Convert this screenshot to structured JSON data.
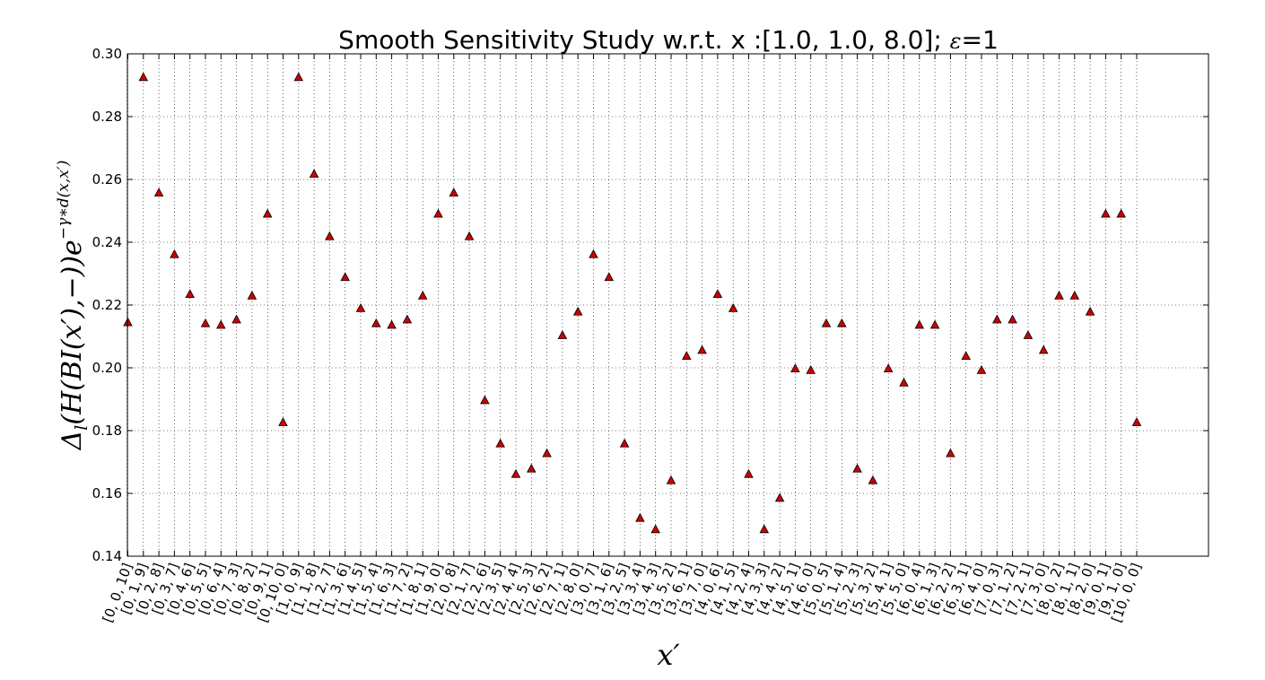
{
  "chart_data": {
    "type": "scatter",
    "title": {
      "prefix": "Smooth Sensitivity Study w.r.t. x :[1.0, 1.0, 8.0]; ",
      "epsilon_symbol": "ε",
      "suffix": "=1"
    },
    "xlabel": "x′",
    "ylabel": "Δl(H(BI(x′),−))e^{−γ∗d(x,x′)}",
    "ylim": [
      0.14,
      0.3
    ],
    "yticks": [
      "0.14",
      "0.16",
      "0.18",
      "0.20",
      "0.22",
      "0.24",
      "0.26",
      "0.28",
      "0.30"
    ],
    "grid": true,
    "marker": "triangle",
    "marker_color": "#cc0000",
    "x": [
      "[0, 0, 10]",
      "[0, 1, 9]",
      "[0, 2, 8]",
      "[0, 3, 7]",
      "[0, 4, 6]",
      "[0, 5, 5]",
      "[0, 6, 4]",
      "[0, 7, 3]",
      "[0, 8, 2]",
      "[0, 9, 1]",
      "[0, 10, 0]",
      "[1, 0, 9]",
      "[1, 1, 8]",
      "[1, 2, 7]",
      "[1, 3, 6]",
      "[1, 4, 5]",
      "[1, 5, 4]",
      "[1, 6, 3]",
      "[1, 7, 2]",
      "[1, 8, 1]",
      "[1, 9, 0]",
      "[2, 0, 8]",
      "[2, 1, 7]",
      "[2, 2, 6]",
      "[2, 3, 5]",
      "[2, 4, 4]",
      "[2, 5, 3]",
      "[2, 6, 2]",
      "[2, 7, 1]",
      "[2, 8, 0]",
      "[3, 0, 7]",
      "[3, 1, 6]",
      "[3, 2, 5]",
      "[3, 3, 4]",
      "[3, 4, 3]",
      "[3, 5, 2]",
      "[3, 6, 1]",
      "[3, 7, 0]",
      "[4, 0, 6]",
      "[4, 1, 5]",
      "[4, 2, 4]",
      "[4, 3, 3]",
      "[4, 4, 2]",
      "[4, 5, 1]",
      "[4, 6, 0]",
      "[5, 0, 5]",
      "[5, 1, 4]",
      "[5, 2, 3]",
      "[5, 3, 2]",
      "[5, 4, 1]",
      "[5, 5, 0]",
      "[6, 0, 4]",
      "[6, 1, 3]",
      "[6, 2, 2]",
      "[6, 3, 1]",
      "[6, 4, 0]",
      "[7, 0, 3]",
      "[7, 1, 2]",
      "[7, 2, 1]",
      "[7, 3, 0]",
      "[8, 0, 2]",
      "[8, 1, 1]",
      "[8, 2, 0]",
      "[9, 0, 1]",
      "[9, 1, 0]",
      "[10, 0, 0]"
    ],
    "tick_labels_shown": [
      "[0, 0, 10]",
      "[0, 1, 9]",
      "[0, 2, 8]",
      "[0, 3, 7]",
      "[0, 4, 6]",
      "[0, 5, 5]",
      "[0, 6, 4]",
      "[0, 7, 3]",
      "[0, 8, 2]",
      "[0, 9, 1]",
      "[0, 10, 0]",
      "[1, 0, 9]",
      "[1, 1, 8]",
      "[1, 2, 7]",
      "[1, 3, 6]",
      "[1, 4, 5]",
      "[1, 5, 4]",
      "[1, 6, 3]",
      "[1, 7, 2]",
      "[1, 8, 1]",
      "[1, 9, 0]",
      "[2, 0, 8]",
      "[2, 1, 7]",
      "[2, 2, 6]",
      "[2, 3, 5]",
      "[2, 4, 4]",
      "[2, 5, 3]",
      "[2, 6, 2]",
      "[2, 7, 1]",
      "[2, 8, 0]",
      "[3, 0, 7]",
      "[3, 1, 6]",
      "[3, 2, 5]",
      "[3, 3, 4]",
      "[3, 4, 3]",
      "[3, 5, 2]",
      "[3, 6, 1]",
      "[3, 7, 0]",
      "[4, 0, 6]",
      "[4, 1, 5]",
      "[4, 2, 4]",
      "[4, 3, 3]",
      "[4, 4, 2]",
      "[4, 5, 1]",
      "[4, 6, 0]",
      "[5, 0, 5]",
      "[5, 1, 4]",
      "[5, 2, 3]",
      "[5, 3, 2]",
      "[5, 4, 1]",
      "[5, 5, 0]",
      "[6, 0, 4]",
      "[6, 1, 3]",
      "[6, 2, 2]",
      "[6, 3, 1]",
      "[6, 4, 0]",
      "[7, 0, 3]",
      "[7, 1, 2]",
      "[7, 2, 1]",
      "[7, 3, 0]",
      "[8, 0, 2]",
      "[8, 1, 1]",
      "[8, 2, 0]",
      "[9, 0, 1]",
      "[9, 1, 0]",
      "[10, 0, 0]"
    ],
    "y": [
      0.2145,
      0.2926,
      0.2558,
      0.2362,
      0.2235,
      0.2142,
      0.2137,
      0.2154,
      0.223,
      0.2491,
      0.1827,
      0.2926,
      0.2618,
      0.2419,
      0.2289,
      0.219,
      0.2142,
      0.2137,
      0.2154,
      0.223,
      0.2491,
      0.2558,
      0.2419,
      0.1897,
      0.1759,
      0.1662,
      0.1679,
      0.1728,
      0.2104,
      0.2179,
      0.2362,
      0.2289,
      0.1759,
      0.1522,
      0.1486,
      0.1642,
      0.2038,
      0.2057,
      0.2235,
      0.219,
      0.1662,
      0.1486,
      0.1586,
      0.1998,
      0.1993,
      0.2142,
      0.2142,
      0.1679,
      0.1642,
      0.1998,
      0.1953,
      0.2137,
      0.2137,
      0.1728,
      0.2038,
      0.1993,
      0.2154,
      0.2154,
      0.2104,
      0.2057,
      0.223,
      0.223,
      0.2179,
      0.2491,
      0.2491,
      0.1827
    ]
  }
}
